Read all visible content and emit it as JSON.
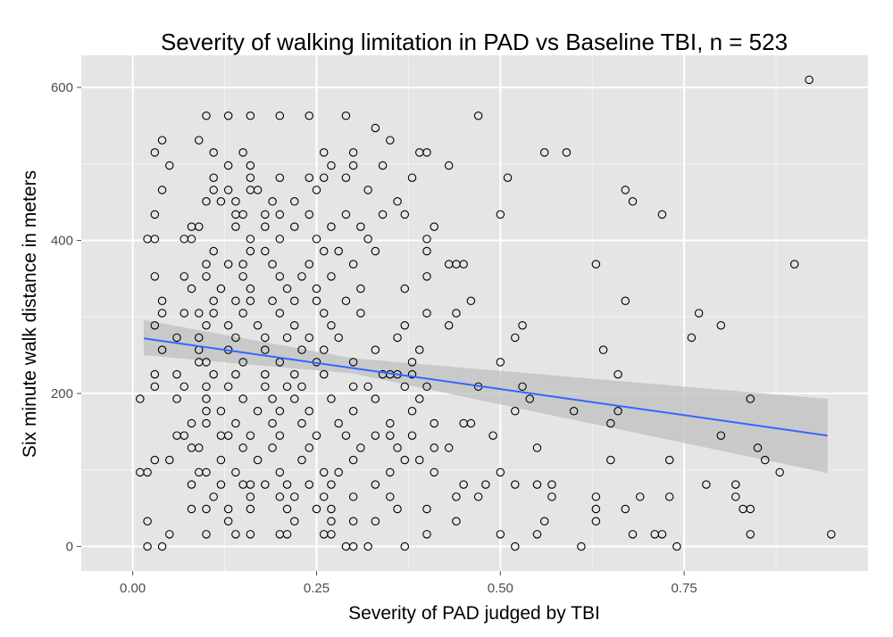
{
  "colors": {
    "panel": "#e5e5e5",
    "grid_major": "#ffffff",
    "grid_minor": "#f2f2f2",
    "points": "#000000",
    "fit_line": "#3366ff",
    "confidence_band": "#bfbfbf",
    "tick_labels": "#4d4d4d"
  },
  "chart_data": {
    "type": "scatter",
    "title": "Severity of walking limitation in PAD vs Baseline TBI, n = 523",
    "xlabel": "Severity of PAD judged by TBI",
    "ylabel": "Six minute walk distance in meters",
    "xlim": [
      -0.07,
      1.0
    ],
    "ylim": [
      -32,
      642
    ],
    "x_ticks": [
      0.0,
      0.25,
      0.5,
      0.75
    ],
    "x_tick_labels": [
      "0.00",
      "0.25",
      "0.50",
      "0.75"
    ],
    "y_ticks": [
      0,
      200,
      400,
      600
    ],
    "y_tick_labels": [
      "0",
      "200",
      "400",
      "600"
    ],
    "grid": true,
    "legend": "none",
    "marker": "open circle",
    "points": [
      [
        0.92,
        610
      ],
      [
        0.47,
        563
      ],
      [
        0.1,
        563
      ],
      [
        0.13,
        563
      ],
      [
        0.16,
        563
      ],
      [
        0.2,
        563
      ],
      [
        0.24,
        563
      ],
      [
        0.29,
        563
      ],
      [
        0.33,
        547
      ],
      [
        0.35,
        531
      ],
      [
        0.04,
        531
      ],
      [
        0.09,
        531
      ],
      [
        0.03,
        515
      ],
      [
        0.11,
        515
      ],
      [
        0.15,
        515
      ],
      [
        0.26,
        515
      ],
      [
        0.3,
        515
      ],
      [
        0.39,
        515
      ],
      [
        0.4,
        515
      ],
      [
        0.56,
        515
      ],
      [
        0.59,
        515
      ],
      [
        0.05,
        498
      ],
      [
        0.13,
        498
      ],
      [
        0.16,
        498
      ],
      [
        0.27,
        498
      ],
      [
        0.3,
        498
      ],
      [
        0.34,
        498
      ],
      [
        0.43,
        498
      ],
      [
        0.51,
        482
      ],
      [
        0.11,
        482
      ],
      [
        0.16,
        482
      ],
      [
        0.2,
        482
      ],
      [
        0.24,
        482
      ],
      [
        0.26,
        482
      ],
      [
        0.29,
        482
      ],
      [
        0.38,
        482
      ],
      [
        0.04,
        466
      ],
      [
        0.11,
        466
      ],
      [
        0.13,
        466
      ],
      [
        0.16,
        466
      ],
      [
        0.17,
        466
      ],
      [
        0.25,
        466
      ],
      [
        0.32,
        466
      ],
      [
        0.67,
        466
      ],
      [
        0.1,
        451
      ],
      [
        0.12,
        451
      ],
      [
        0.14,
        451
      ],
      [
        0.19,
        451
      ],
      [
        0.22,
        451
      ],
      [
        0.36,
        451
      ],
      [
        0.68,
        451
      ],
      [
        0.03,
        434
      ],
      [
        0.14,
        434
      ],
      [
        0.15,
        434
      ],
      [
        0.18,
        434
      ],
      [
        0.2,
        434
      ],
      [
        0.24,
        434
      ],
      [
        0.29,
        434
      ],
      [
        0.34,
        434
      ],
      [
        0.37,
        434
      ],
      [
        0.5,
        434
      ],
      [
        0.72,
        434
      ],
      [
        0.08,
        418
      ],
      [
        0.09,
        418
      ],
      [
        0.14,
        418
      ],
      [
        0.18,
        418
      ],
      [
        0.22,
        418
      ],
      [
        0.27,
        418
      ],
      [
        0.31,
        418
      ],
      [
        0.41,
        418
      ],
      [
        0.02,
        402
      ],
      [
        0.03,
        402
      ],
      [
        0.07,
        402
      ],
      [
        0.08,
        402
      ],
      [
        0.16,
        402
      ],
      [
        0.2,
        402
      ],
      [
        0.25,
        402
      ],
      [
        0.32,
        402
      ],
      [
        0.4,
        402
      ],
      [
        0.11,
        386
      ],
      [
        0.16,
        386
      ],
      [
        0.18,
        386
      ],
      [
        0.26,
        386
      ],
      [
        0.28,
        386
      ],
      [
        0.33,
        386
      ],
      [
        0.4,
        386
      ],
      [
        0.1,
        369
      ],
      [
        0.13,
        369
      ],
      [
        0.15,
        369
      ],
      [
        0.19,
        369
      ],
      [
        0.24,
        369
      ],
      [
        0.3,
        369
      ],
      [
        0.43,
        369
      ],
      [
        0.44,
        369
      ],
      [
        0.45,
        369
      ],
      [
        0.63,
        369
      ],
      [
        0.9,
        369
      ],
      [
        0.03,
        353
      ],
      [
        0.07,
        353
      ],
      [
        0.1,
        353
      ],
      [
        0.15,
        353
      ],
      [
        0.2,
        353
      ],
      [
        0.23,
        353
      ],
      [
        0.27,
        353
      ],
      [
        0.4,
        353
      ],
      [
        0.08,
        337
      ],
      [
        0.12,
        337
      ],
      [
        0.16,
        337
      ],
      [
        0.21,
        337
      ],
      [
        0.25,
        337
      ],
      [
        0.31,
        337
      ],
      [
        0.37,
        337
      ],
      [
        0.04,
        321
      ],
      [
        0.11,
        321
      ],
      [
        0.14,
        321
      ],
      [
        0.16,
        321
      ],
      [
        0.19,
        321
      ],
      [
        0.22,
        321
      ],
      [
        0.25,
        321
      ],
      [
        0.29,
        321
      ],
      [
        0.46,
        321
      ],
      [
        0.67,
        321
      ],
      [
        0.04,
        305
      ],
      [
        0.07,
        305
      ],
      [
        0.09,
        305
      ],
      [
        0.11,
        305
      ],
      [
        0.15,
        305
      ],
      [
        0.2,
        305
      ],
      [
        0.26,
        305
      ],
      [
        0.31,
        305
      ],
      [
        0.4,
        305
      ],
      [
        0.44,
        305
      ],
      [
        0.77,
        305
      ],
      [
        0.03,
        289
      ],
      [
        0.1,
        289
      ],
      [
        0.13,
        289
      ],
      [
        0.17,
        289
      ],
      [
        0.22,
        289
      ],
      [
        0.27,
        289
      ],
      [
        0.37,
        289
      ],
      [
        0.43,
        289
      ],
      [
        0.53,
        289
      ],
      [
        0.8,
        289
      ],
      [
        0.06,
        273
      ],
      [
        0.09,
        273
      ],
      [
        0.14,
        273
      ],
      [
        0.18,
        273
      ],
      [
        0.21,
        273
      ],
      [
        0.24,
        273
      ],
      [
        0.28,
        273
      ],
      [
        0.36,
        273
      ],
      [
        0.52,
        273
      ],
      [
        0.76,
        273
      ],
      [
        0.04,
        257
      ],
      [
        0.09,
        257
      ],
      [
        0.13,
        257
      ],
      [
        0.18,
        257
      ],
      [
        0.23,
        257
      ],
      [
        0.26,
        257
      ],
      [
        0.33,
        257
      ],
      [
        0.39,
        257
      ],
      [
        0.64,
        257
      ],
      [
        0.09,
        241
      ],
      [
        0.1,
        241
      ],
      [
        0.15,
        241
      ],
      [
        0.2,
        241
      ],
      [
        0.25,
        241
      ],
      [
        0.3,
        241
      ],
      [
        0.38,
        241
      ],
      [
        0.5,
        241
      ],
      [
        0.03,
        225
      ],
      [
        0.06,
        225
      ],
      [
        0.11,
        225
      ],
      [
        0.14,
        225
      ],
      [
        0.18,
        225
      ],
      [
        0.22,
        225
      ],
      [
        0.26,
        225
      ],
      [
        0.34,
        225
      ],
      [
        0.35,
        225
      ],
      [
        0.36,
        225
      ],
      [
        0.38,
        225
      ],
      [
        0.66,
        225
      ],
      [
        0.03,
        209
      ],
      [
        0.07,
        209
      ],
      [
        0.1,
        209
      ],
      [
        0.13,
        209
      ],
      [
        0.18,
        209
      ],
      [
        0.21,
        209
      ],
      [
        0.23,
        209
      ],
      [
        0.3,
        209
      ],
      [
        0.32,
        209
      ],
      [
        0.37,
        209
      ],
      [
        0.4,
        209
      ],
      [
        0.47,
        209
      ],
      [
        0.53,
        209
      ],
      [
        0.01,
        193
      ],
      [
        0.06,
        193
      ],
      [
        0.1,
        193
      ],
      [
        0.15,
        193
      ],
      [
        0.19,
        193
      ],
      [
        0.22,
        193
      ],
      [
        0.27,
        193
      ],
      [
        0.33,
        193
      ],
      [
        0.39,
        193
      ],
      [
        0.54,
        193
      ],
      [
        0.84,
        193
      ],
      [
        0.1,
        177
      ],
      [
        0.12,
        177
      ],
      [
        0.17,
        177
      ],
      [
        0.2,
        177
      ],
      [
        0.24,
        177
      ],
      [
        0.3,
        177
      ],
      [
        0.38,
        177
      ],
      [
        0.52,
        177
      ],
      [
        0.6,
        177
      ],
      [
        0.66,
        177
      ],
      [
        0.08,
        161
      ],
      [
        0.1,
        161
      ],
      [
        0.14,
        161
      ],
      [
        0.19,
        161
      ],
      [
        0.23,
        161
      ],
      [
        0.28,
        161
      ],
      [
        0.35,
        161
      ],
      [
        0.41,
        161
      ],
      [
        0.45,
        161
      ],
      [
        0.46,
        161
      ],
      [
        0.65,
        161
      ],
      [
        0.06,
        145
      ],
      [
        0.07,
        145
      ],
      [
        0.12,
        145
      ],
      [
        0.13,
        145
      ],
      [
        0.16,
        145
      ],
      [
        0.2,
        145
      ],
      [
        0.25,
        145
      ],
      [
        0.29,
        145
      ],
      [
        0.33,
        145
      ],
      [
        0.35,
        145
      ],
      [
        0.38,
        145
      ],
      [
        0.49,
        145
      ],
      [
        0.8,
        145
      ],
      [
        0.08,
        129
      ],
      [
        0.09,
        129
      ],
      [
        0.15,
        129
      ],
      [
        0.19,
        129
      ],
      [
        0.24,
        129
      ],
      [
        0.31,
        129
      ],
      [
        0.36,
        129
      ],
      [
        0.41,
        129
      ],
      [
        0.43,
        129
      ],
      [
        0.55,
        129
      ],
      [
        0.85,
        129
      ],
      [
        0.03,
        113
      ],
      [
        0.05,
        113
      ],
      [
        0.12,
        113
      ],
      [
        0.17,
        113
      ],
      [
        0.23,
        113
      ],
      [
        0.3,
        113
      ],
      [
        0.37,
        113
      ],
      [
        0.39,
        113
      ],
      [
        0.65,
        113
      ],
      [
        0.73,
        113
      ],
      [
        0.86,
        113
      ],
      [
        0.01,
        97
      ],
      [
        0.02,
        97
      ],
      [
        0.09,
        97
      ],
      [
        0.1,
        97
      ],
      [
        0.14,
        97
      ],
      [
        0.2,
        97
      ],
      [
        0.26,
        97
      ],
      [
        0.28,
        97
      ],
      [
        0.35,
        97
      ],
      [
        0.41,
        97
      ],
      [
        0.5,
        97
      ],
      [
        0.88,
        97
      ],
      [
        0.08,
        81
      ],
      [
        0.12,
        81
      ],
      [
        0.15,
        81
      ],
      [
        0.16,
        81
      ],
      [
        0.18,
        81
      ],
      [
        0.21,
        81
      ],
      [
        0.24,
        81
      ],
      [
        0.27,
        81
      ],
      [
        0.33,
        81
      ],
      [
        0.45,
        81
      ],
      [
        0.48,
        81
      ],
      [
        0.52,
        81
      ],
      [
        0.55,
        81
      ],
      [
        0.57,
        81
      ],
      [
        0.78,
        81
      ],
      [
        0.82,
        81
      ],
      [
        0.11,
        65
      ],
      [
        0.16,
        65
      ],
      [
        0.2,
        65
      ],
      [
        0.22,
        65
      ],
      [
        0.26,
        65
      ],
      [
        0.3,
        65
      ],
      [
        0.35,
        65
      ],
      [
        0.44,
        65
      ],
      [
        0.47,
        65
      ],
      [
        0.57,
        65
      ],
      [
        0.63,
        65
      ],
      [
        0.69,
        65
      ],
      [
        0.73,
        65
      ],
      [
        0.82,
        65
      ],
      [
        0.08,
        49
      ],
      [
        0.1,
        49
      ],
      [
        0.13,
        49
      ],
      [
        0.16,
        49
      ],
      [
        0.21,
        49
      ],
      [
        0.25,
        49
      ],
      [
        0.27,
        49
      ],
      [
        0.36,
        49
      ],
      [
        0.4,
        49
      ],
      [
        0.63,
        49
      ],
      [
        0.67,
        49
      ],
      [
        0.83,
        49
      ],
      [
        0.84,
        49
      ],
      [
        0.02,
        33
      ],
      [
        0.13,
        33
      ],
      [
        0.22,
        33
      ],
      [
        0.27,
        33
      ],
      [
        0.3,
        33
      ],
      [
        0.33,
        33
      ],
      [
        0.44,
        33
      ],
      [
        0.56,
        33
      ],
      [
        0.63,
        33
      ],
      [
        0.05,
        16
      ],
      [
        0.1,
        16
      ],
      [
        0.14,
        16
      ],
      [
        0.16,
        16
      ],
      [
        0.2,
        16
      ],
      [
        0.21,
        16
      ],
      [
        0.26,
        16
      ],
      [
        0.27,
        16
      ],
      [
        0.4,
        16
      ],
      [
        0.5,
        16
      ],
      [
        0.55,
        16
      ],
      [
        0.68,
        16
      ],
      [
        0.71,
        16
      ],
      [
        0.72,
        16
      ],
      [
        0.84,
        16
      ],
      [
        0.95,
        16
      ],
      [
        0.02,
        0
      ],
      [
        0.04,
        0
      ],
      [
        0.29,
        0
      ],
      [
        0.3,
        0
      ],
      [
        0.32,
        0
      ],
      [
        0.37,
        0
      ],
      [
        0.52,
        0
      ],
      [
        0.61,
        0
      ],
      [
        0.74,
        0
      ]
    ],
    "fit_line": {
      "x": [
        0.015,
        0.945
      ],
      "y": [
        272,
        145
      ]
    },
    "confidence_band": {
      "x": [
        0.015,
        0.3,
        0.945
      ],
      "lower": [
        250,
        226,
        96
      ],
      "upper": [
        296,
        246,
        193
      ]
    }
  }
}
